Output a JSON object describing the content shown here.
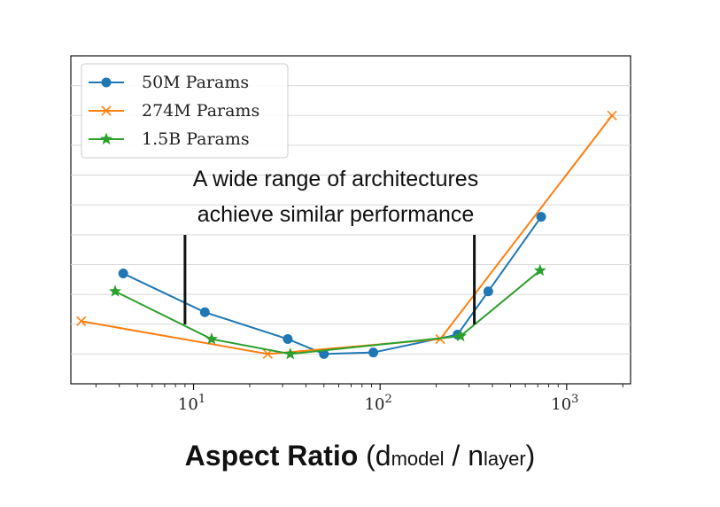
{
  "chart_data": {
    "type": "line",
    "xscale": "log",
    "xlim": [
      2.2,
      2200
    ],
    "ylim": [
      0,
      11
    ],
    "grid": {
      "horizontal": true,
      "vertical": false
    },
    "legend_position": "top-left",
    "xticks": [
      {
        "base": "10",
        "exp": "1"
      },
      {
        "base": "10",
        "exp": "2"
      },
      {
        "base": "10",
        "exp": "3"
      }
    ],
    "xlabel": {
      "main": "Aspect Ratio",
      "open": " (d",
      "sub1": "model",
      "mid": " / n",
      "sub2": "layer",
      "close": ")"
    },
    "annotation": {
      "line1": "A wide range of architectures",
      "line2": "achieve similar performance",
      "bracket_x": [
        9,
        320
      ]
    },
    "series": [
      {
        "name": "50M Params",
        "color": "#1f77b4",
        "marker": "circle",
        "x": [
          4.2,
          11.5,
          32,
          50,
          92,
          260,
          380,
          730
        ],
        "y": [
          3.7,
          2.4,
          1.5,
          1.0,
          1.05,
          1.65,
          3.1,
          5.6
        ]
      },
      {
        "name": "274M Params",
        "color": "#ff7f0e",
        "marker": "x",
        "x": [
          2.5,
          25,
          210,
          1750
        ],
        "y": [
          2.1,
          1.0,
          1.5,
          9.0
        ]
      },
      {
        "name": "1.5B Params",
        "color": "#2ca02c",
        "marker": "star",
        "x": [
          3.8,
          12.5,
          33,
          270,
          720
        ],
        "y": [
          3.1,
          1.5,
          1.0,
          1.6,
          3.8
        ]
      }
    ]
  }
}
